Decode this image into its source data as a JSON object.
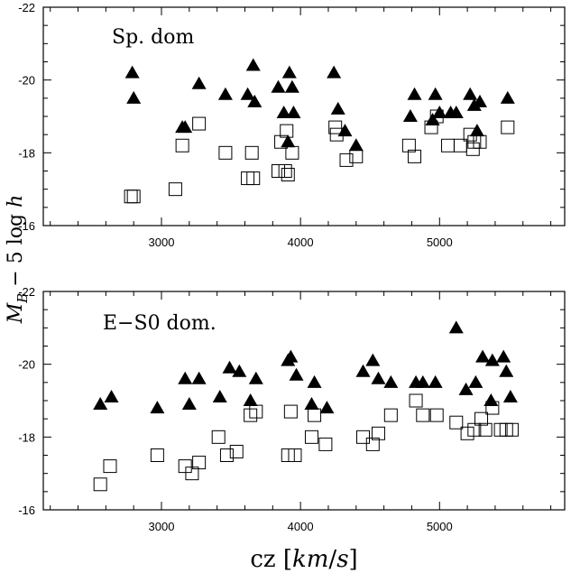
{
  "chart_data": [
    {
      "type": "scatter",
      "panel_label": "Sp. dom",
      "xlim": [
        2150,
        5900
      ],
      "ylim": [
        -16,
        -22
      ],
      "x_ticks": [
        3000,
        4000,
        5000
      ],
      "y_ticks": [
        -16,
        -18,
        -20,
        -22
      ],
      "series": [
        {
          "marker": "filled-triangle",
          "points": [
            [
              2790,
              -20.2
            ],
            [
              2800,
              -19.5
            ],
            [
              3150,
              -18.7
            ],
            [
              3170,
              -18.7
            ],
            [
              3270,
              -19.9
            ],
            [
              3460,
              -19.6
            ],
            [
              3620,
              -19.6
            ],
            [
              3660,
              -20.4
            ],
            [
              3670,
              -19.4
            ],
            [
              3840,
              -19.8
            ],
            [
              3880,
              -19.1
            ],
            [
              3910,
              -18.3
            ],
            [
              3920,
              -20.2
            ],
            [
              3940,
              -19.8
            ],
            [
              3950,
              -19.1
            ],
            [
              4240,
              -20.2
            ],
            [
              4270,
              -19.2
            ],
            [
              4320,
              -18.6
            ],
            [
              4400,
              -18.2
            ],
            [
              4790,
              -19.0
            ],
            [
              4820,
              -19.6
            ],
            [
              4950,
              -18.9
            ],
            [
              4970,
              -19.6
            ],
            [
              5000,
              -19.1
            ],
            [
              5080,
              -19.1
            ],
            [
              5120,
              -19.1
            ],
            [
              5220,
              -19.6
            ],
            [
              5250,
              -19.3
            ],
            [
              5270,
              -18.6
            ],
            [
              5290,
              -19.4
            ],
            [
              5490,
              -19.5
            ]
          ]
        },
        {
          "marker": "open-square",
          "points": [
            [
              2780,
              -16.8
            ],
            [
              2800,
              -16.8
            ],
            [
              3100,
              -17.0
            ],
            [
              3150,
              -18.2
            ],
            [
              3270,
              -18.8
            ],
            [
              3460,
              -18.0
            ],
            [
              3620,
              -17.3
            ],
            [
              3660,
              -17.3
            ],
            [
              3650,
              -18.0
            ],
            [
              3840,
              -17.5
            ],
            [
              3860,
              -18.3
            ],
            [
              3890,
              -17.5
            ],
            [
              3910,
              -17.4
            ],
            [
              3900,
              -18.6
            ],
            [
              3940,
              -18.0
            ],
            [
              4250,
              -18.7
            ],
            [
              4260,
              -18.5
            ],
            [
              4330,
              -17.8
            ],
            [
              4400,
              -17.9
            ],
            [
              4780,
              -18.2
            ],
            [
              4820,
              -17.9
            ],
            [
              4940,
              -18.7
            ],
            [
              4980,
              -19.0
            ],
            [
              5060,
              -18.2
            ],
            [
              5150,
              -18.2
            ],
            [
              5220,
              -18.5
            ],
            [
              5240,
              -18.1
            ],
            [
              5250,
              -18.3
            ],
            [
              5290,
              -18.3
            ],
            [
              5490,
              -18.7
            ]
          ]
        }
      ]
    },
    {
      "type": "scatter",
      "panel_label": "E−S0 dom.",
      "xlim": [
        2150,
        5900
      ],
      "ylim": [
        -16,
        -22
      ],
      "x_ticks": [
        3000,
        4000,
        5000
      ],
      "x_tick_labels": [
        "3000",
        "4000",
        "5000"
      ],
      "y_ticks": [
        -16,
        -18,
        -20,
        -22
      ],
      "series": [
        {
          "marker": "filled-triangle",
          "points": [
            [
              2560,
              -18.9
            ],
            [
              2640,
              -19.1
            ],
            [
              2970,
              -18.8
            ],
            [
              3170,
              -19.6
            ],
            [
              3200,
              -18.9
            ],
            [
              3270,
              -19.6
            ],
            [
              3420,
              -19.1
            ],
            [
              3490,
              -19.9
            ],
            [
              3560,
              -19.8
            ],
            [
              3640,
              -19.0
            ],
            [
              3680,
              -19.6
            ],
            [
              3910,
              -20.1
            ],
            [
              3930,
              -20.2
            ],
            [
              3970,
              -19.7
            ],
            [
              4100,
              -19.5
            ],
            [
              4080,
              -18.9
            ],
            [
              4190,
              -18.8
            ],
            [
              4450,
              -19.8
            ],
            [
              4520,
              -20.1
            ],
            [
              4560,
              -19.6
            ],
            [
              4650,
              -19.5
            ],
            [
              4830,
              -19.5
            ],
            [
              4880,
              -19.5
            ],
            [
              4970,
              -19.5
            ],
            [
              5120,
              -21.0
            ],
            [
              5190,
              -19.3
            ],
            [
              5260,
              -19.5
            ],
            [
              5310,
              -20.2
            ],
            [
              5380,
              -20.1
            ],
            [
              5370,
              -19.0
            ],
            [
              5460,
              -20.2
            ],
            [
              5480,
              -19.8
            ],
            [
              5510,
              -19.1
            ]
          ]
        },
        {
          "marker": "open-square",
          "points": [
            [
              2560,
              -16.7
            ],
            [
              2630,
              -17.2
            ],
            [
              2970,
              -17.5
            ],
            [
              3170,
              -17.2
            ],
            [
              3220,
              -17.0
            ],
            [
              3270,
              -17.3
            ],
            [
              3410,
              -18.0
            ],
            [
              3470,
              -17.5
            ],
            [
              3540,
              -17.6
            ],
            [
              3640,
              -18.6
            ],
            [
              3680,
              -18.7
            ],
            [
              3910,
              -17.5
            ],
            [
              3930,
              -18.7
            ],
            [
              3960,
              -17.5
            ],
            [
              4080,
              -18.0
            ],
            [
              4100,
              -18.6
            ],
            [
              4180,
              -17.8
            ],
            [
              4450,
              -18.0
            ],
            [
              4520,
              -17.8
            ],
            [
              4560,
              -18.1
            ],
            [
              4650,
              -18.6
            ],
            [
              4830,
              -19.0
            ],
            [
              4880,
              -18.6
            ],
            [
              4980,
              -18.6
            ],
            [
              5120,
              -18.4
            ],
            [
              5200,
              -18.1
            ],
            [
              5250,
              -18.2
            ],
            [
              5300,
              -18.5
            ],
            [
              5330,
              -18.2
            ],
            [
              5380,
              -18.8
            ],
            [
              5440,
              -18.2
            ],
            [
              5480,
              -18.2
            ],
            [
              5520,
              -18.2
            ]
          ]
        }
      ]
    }
  ],
  "y_tick_labels": [
    "-16",
    "-18",
    "-20",
    "-22"
  ],
  "x_tick_labels": [
    "3000",
    "4000",
    "5000"
  ],
  "xlabel": "cz [km/s]",
  "ylabel": "M_B − 5 log h"
}
